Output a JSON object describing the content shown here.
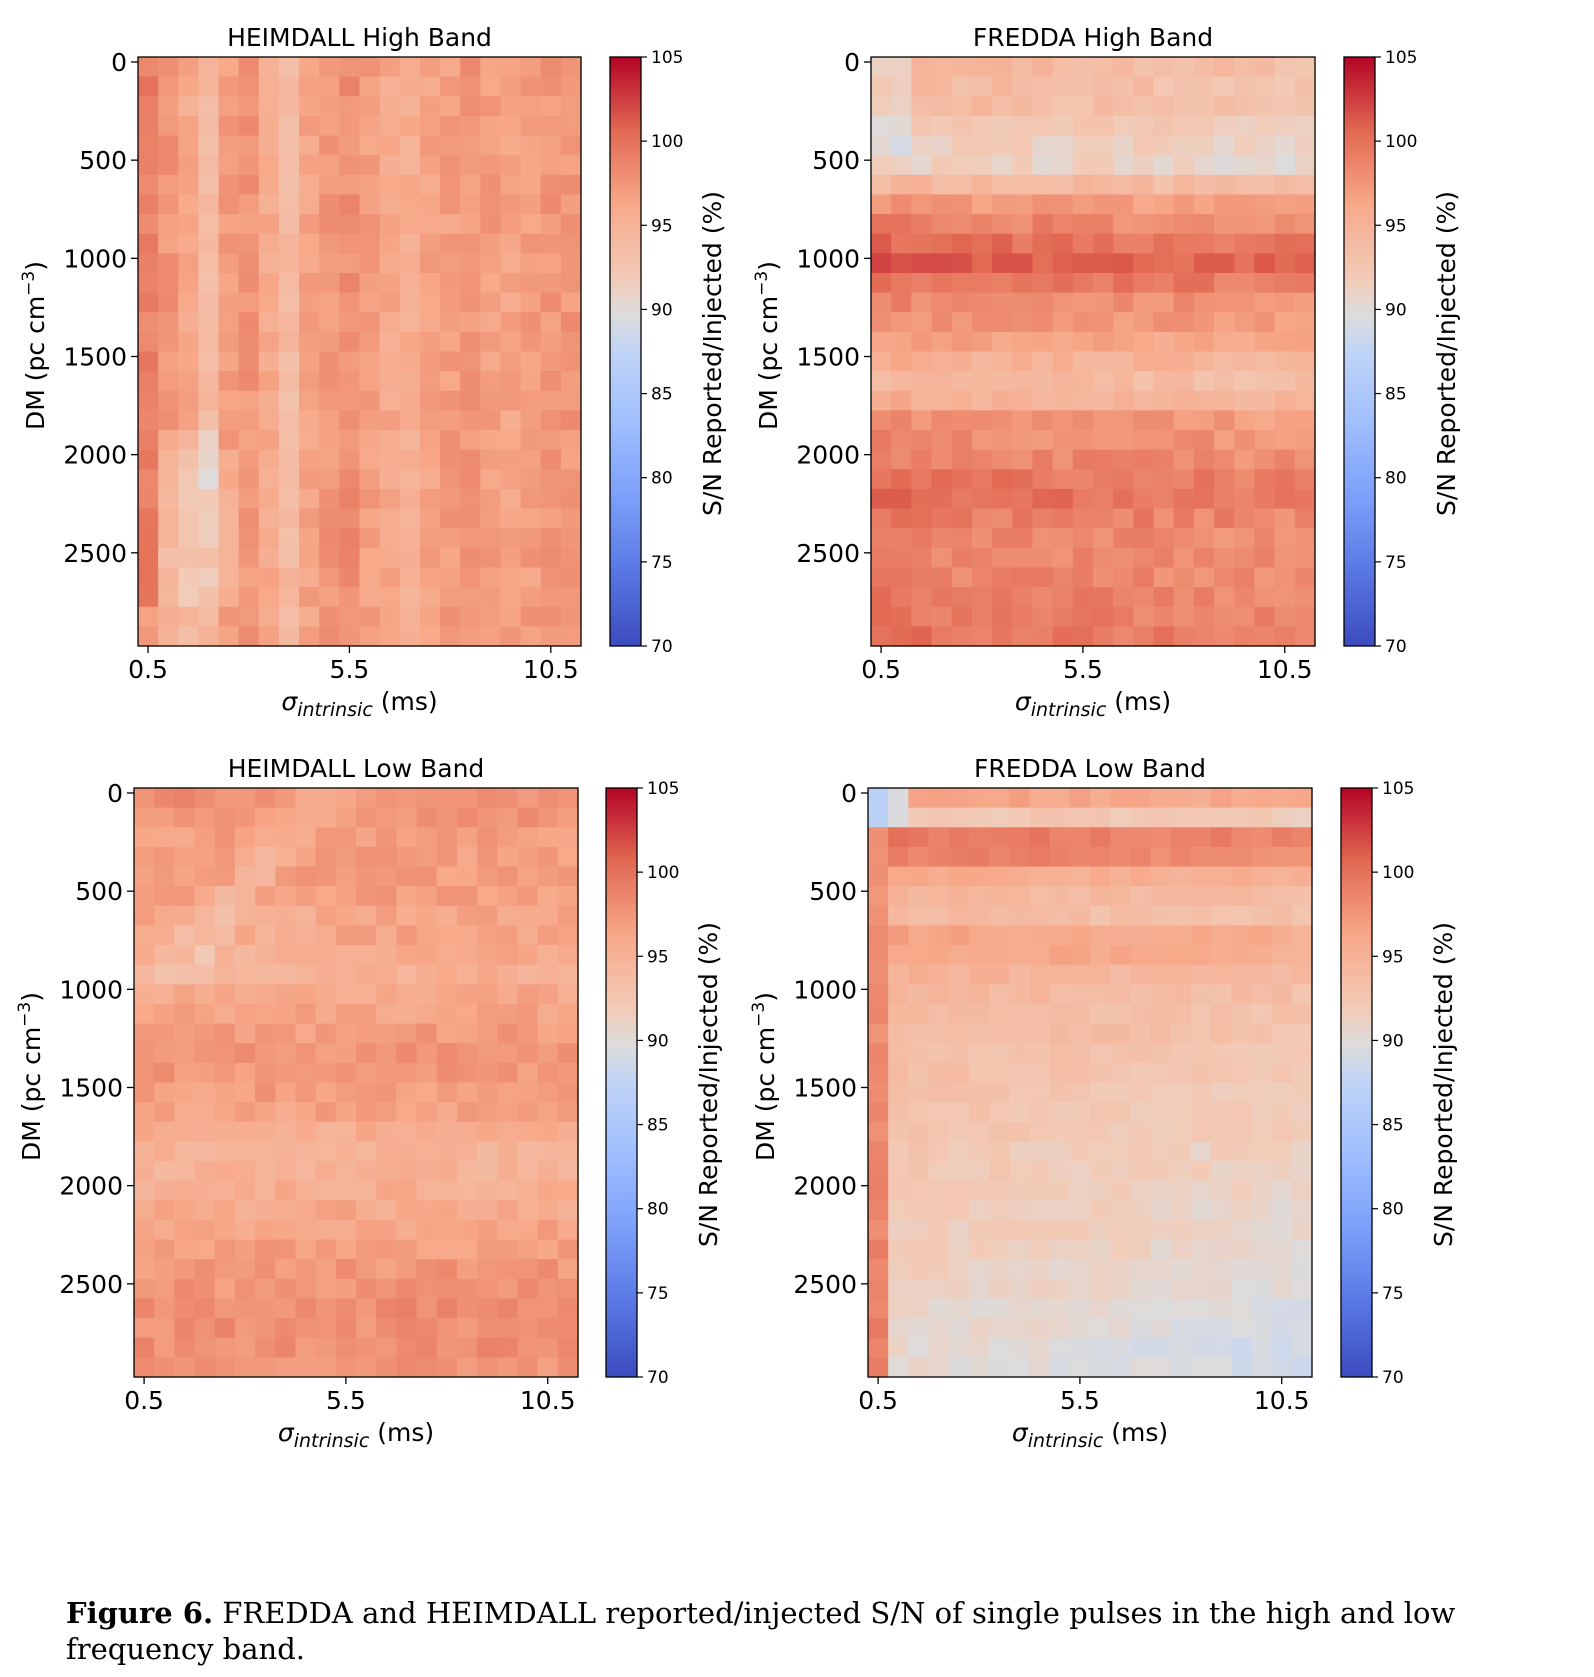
{
  "chart_data": [
    {
      "type": "heatmap",
      "title": "HEIMDALL High Band",
      "xlabel_symbol": "σ",
      "xlabel_sub": "intrinsic",
      "xlabel_unit": "(ms)",
      "ylabel_pre": "DM (pc cm",
      "ylabel_sup": "−3",
      "ylabel_post": ")",
      "x_ticks": [
        "0.5",
        "5.5",
        "10.5"
      ],
      "x_tick_values": [
        0.5,
        5.5,
        10.5
      ],
      "y_ticks": [
        "0",
        "500",
        "1000",
        "1500",
        "2000",
        "2500"
      ],
      "y_tick_values": [
        0,
        500,
        1000,
        1500,
        2000,
        2500
      ],
      "xlim": [
        0.25,
        11.25
      ],
      "ylim": [
        3000,
        0
      ],
      "grid_cols": 22,
      "grid_rows": 30,
      "colorbar": {
        "label": "S/N Reported/Injected (%)",
        "ticks": [
          "105",
          "100",
          "95",
          "90",
          "85",
          "80",
          "75",
          "70"
        ],
        "range": [
          70,
          105
        ],
        "cmap": "coolwarm"
      },
      "pattern": {
        "base": 97.5,
        "col_means": [
          99.0,
          97.5,
          96.0,
          94.0,
          97.0,
          97.5,
          96.0,
          94.0,
          96.5,
          97.5,
          98.0,
          97.0,
          96.0,
          95.5,
          96.5,
          97.0,
          97.5,
          97.0,
          96.5,
          97.0,
          97.5,
          97.5
        ],
        "row_means": [],
        "notes": "lighter diagonal band from (0.5-2.5 ms, DM 2000-2700) up to (2.5-3.5 ms, DM 0-1500)"
      }
    },
    {
      "type": "heatmap",
      "title": "FREDDA High Band",
      "xlabel_symbol": "σ",
      "xlabel_sub": "intrinsic",
      "xlabel_unit": "(ms)",
      "ylabel_pre": "DM (pc cm",
      "ylabel_sup": "−3",
      "ylabel_post": ")",
      "x_ticks": [
        "0.5",
        "5.5",
        "10.5"
      ],
      "x_tick_values": [
        0.5,
        5.5,
        10.5
      ],
      "y_ticks": [
        "0",
        "500",
        "1000",
        "1500",
        "2000",
        "2500"
      ],
      "y_tick_values": [
        0,
        500,
        1000,
        1500,
        2000,
        2500
      ],
      "xlim": [
        0.25,
        11.25
      ],
      "ylim": [
        3000,
        0
      ],
      "grid_cols": 22,
      "grid_rows": 30,
      "colorbar": {
        "label": "S/N Reported/Injected (%)",
        "ticks": [
          "105",
          "100",
          "95",
          "90",
          "85",
          "80",
          "75",
          "70"
        ],
        "range": [
          70,
          105
        ],
        "cmap": "coolwarm"
      },
      "pattern": {
        "row_means": [
          94.5,
          94.0,
          94.0,
          93.0,
          92.0,
          91.5,
          94.5,
          97.5,
          99.0,
          100.5,
          101.5,
          100.0,
          98.5,
          98.0,
          97.0,
          95.5,
          94.5,
          95.5,
          98.0,
          98.5,
          99.0,
          100.0,
          100.5,
          99.5,
          99.0,
          99.0,
          99.0,
          99.5,
          99.5,
          100.0
        ],
        "col_trend": 0.35,
        "notes": "dark red band at DM ~750, lighter band at DM ~250-400, cooler toward right"
      }
    },
    {
      "type": "heatmap",
      "title": "HEIMDALL Low Band",
      "xlabel_symbol": "σ",
      "xlabel_sub": "intrinsic",
      "xlabel_unit": "(ms)",
      "ylabel_pre": "DM (pc cm",
      "ylabel_sup": "−3",
      "ylabel_post": ")",
      "x_ticks": [
        "0.5",
        "5.5",
        "10.5"
      ],
      "x_tick_values": [
        0.5,
        5.5,
        10.5
      ],
      "y_ticks": [
        "0",
        "500",
        "1000",
        "1500",
        "2000",
        "2500"
      ],
      "y_tick_values": [
        0,
        500,
        1000,
        1500,
        2000,
        2500
      ],
      "xlim": [
        0.25,
        11.25
      ],
      "ylim": [
        3000,
        0
      ],
      "grid_cols": 22,
      "grid_rows": 30,
      "colorbar": {
        "label": "S/N Reported/Injected (%)",
        "ticks": [
          "105",
          "100",
          "95",
          "90",
          "85",
          "80",
          "75",
          "70"
        ],
        "range": [
          70,
          105
        ],
        "cmap": "coolwarm"
      },
      "pattern": {
        "row_means": [
          98.0,
          97.5,
          97.0,
          97.0,
          97.0,
          97.0,
          96.5,
          96.5,
          96.0,
          95.5,
          96.0,
          96.5,
          97.0,
          97.5,
          97.5,
          97.0,
          96.5,
          95.5,
          95.0,
          95.0,
          95.5,
          96.0,
          96.5,
          97.0,
          97.5,
          97.5,
          98.0,
          98.0,
          98.0,
          97.5
        ],
        "notes": "light band near DM 1700-2100; light diagonal streak in upper-left"
      }
    },
    {
      "type": "heatmap",
      "title": "FREDDA Low Band",
      "xlabel_symbol": "σ",
      "xlabel_sub": "intrinsic",
      "xlabel_unit": "(ms)",
      "ylabel_pre": "DM (pc cm",
      "ylabel_sup": "−3",
      "ylabel_post": ")",
      "x_ticks": [
        "0.5",
        "5.5",
        "10.5"
      ],
      "x_tick_values": [
        0.5,
        5.5,
        10.5
      ],
      "y_ticks": [
        "0",
        "500",
        "1000",
        "1500",
        "2000",
        "2500"
      ],
      "y_tick_values": [
        0,
        500,
        1000,
        1500,
        2000,
        2500
      ],
      "xlim": [
        0.25,
        11.25
      ],
      "ylim": [
        3000,
        0
      ],
      "grid_cols": 22,
      "grid_rows": 30,
      "colorbar": {
        "label": "S/N Reported/Injected (%)",
        "ticks": [
          "105",
          "100",
          "95",
          "90",
          "85",
          "80",
          "75",
          "70"
        ],
        "range": [
          70,
          105
        ],
        "cmap": "coolwarm"
      },
      "pattern": {
        "row_means": [
          96.5,
          92.5,
          99.5,
          99.0,
          96.0,
          94.5,
          94.0,
          96.5,
          96.5,
          95.0,
          94.5,
          94.0,
          94.0,
          93.5,
          93.5,
          93.0,
          93.0,
          93.0,
          92.5,
          92.5,
          92.5,
          92.0,
          92.0,
          92.0,
          91.5,
          91.5,
          91.0,
          91.0,
          90.5,
          90.5
        ],
        "first_col": 97.5,
        "col_trend": -1.3,
        "notes": "bluish cells at top-left (DM 0-200, 0.5 ms); dark band at DM 250-350; fades toward lower right"
      }
    }
  ],
  "caption": {
    "label": "Figure 6.",
    "text": " FREDDA and HEIMDALL reported/injected S/N of single pulses in the high and low frequency band."
  }
}
